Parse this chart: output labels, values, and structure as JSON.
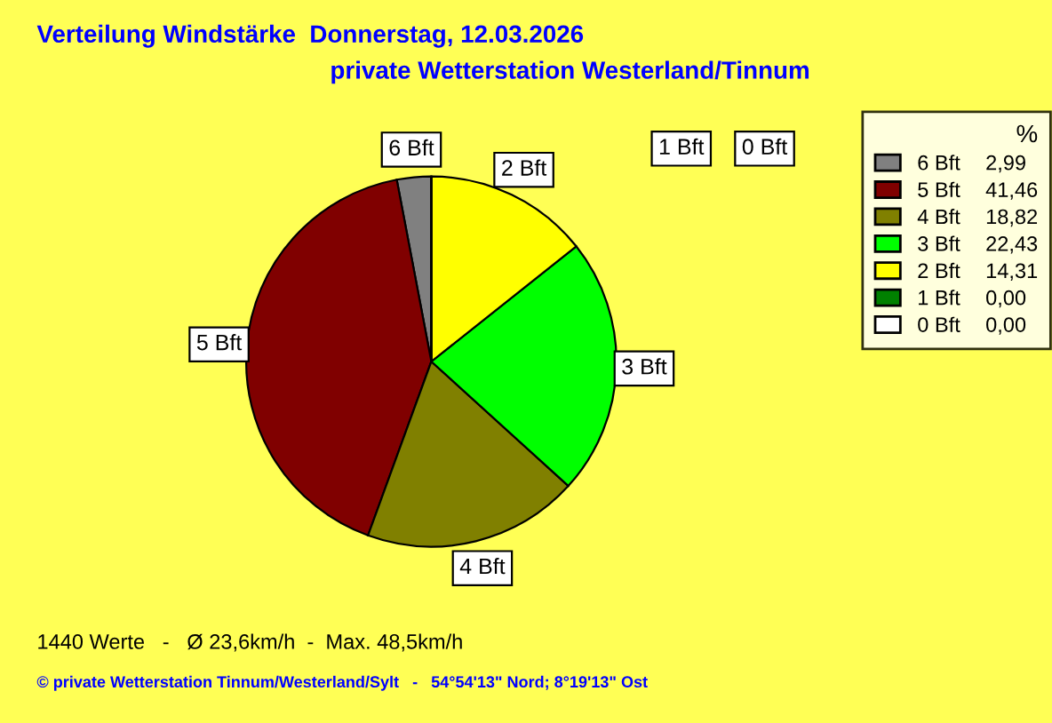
{
  "chart_data": {
    "type": "pie",
    "title": "Verteilung Windstärke  Donnerstag, 12.03.2026",
    "subtitle": "private Wetterstation Westerland/Tinnum",
    "categories": [
      "6 Bft",
      "5 Bft",
      "4 Bft",
      "3 Bft",
      "2 Bft",
      "1 Bft",
      "0 Bft"
    ],
    "values": [
      2.99,
      41.46,
      18.82,
      22.43,
      14.31,
      0.0,
      0.0
    ],
    "value_labels": [
      "2,99",
      "41,46",
      "18,82",
      "22,43",
      "14,31",
      "0,00",
      "0,00"
    ],
    "colors": [
      "#808080",
      "#800000",
      "#808000",
      "#00ff00",
      "#ffff00",
      "#008000",
      "#ffffff"
    ],
    "legend": "right",
    "legend_title": "%",
    "annotations": [
      "1440 Werte   -   Ø 23,6km/h  -  Max. 48,5km/h",
      "© private Wetterstation Tinnum/Westerland/Sylt   -   54°54'13\" Nord; 8°19'13\" Ost"
    ]
  }
}
